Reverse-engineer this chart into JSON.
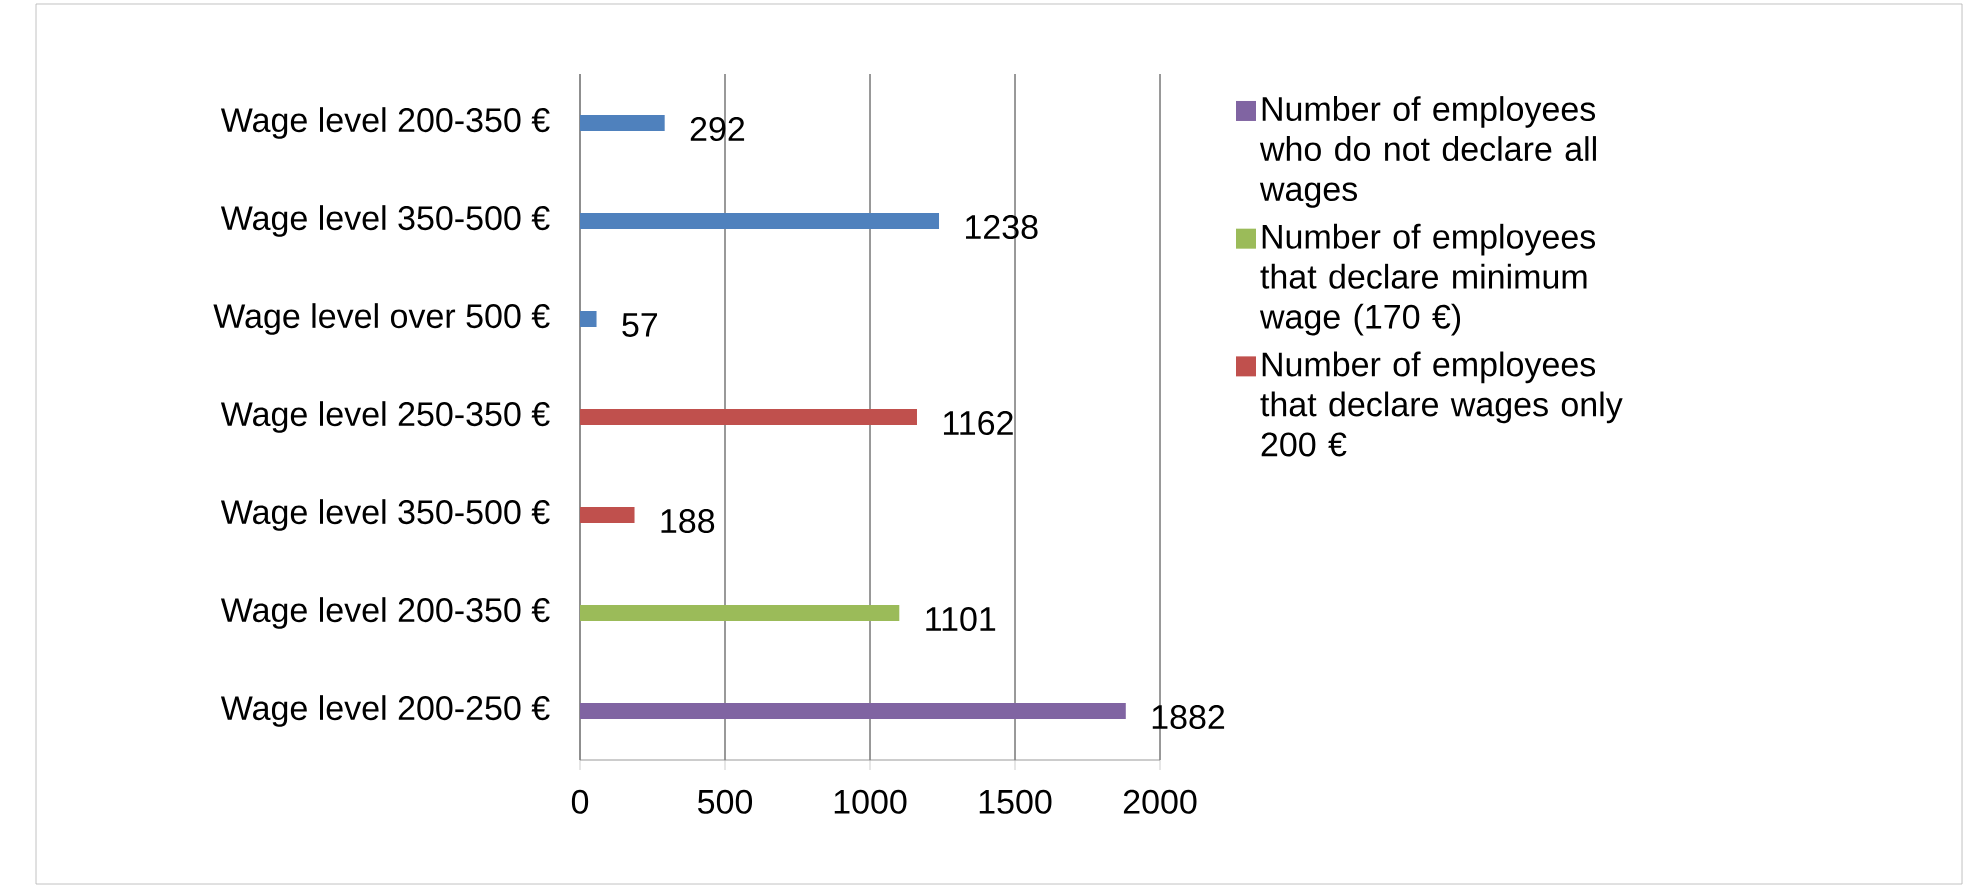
{
  "chart_data": {
    "type": "bar",
    "orientation": "horizontal",
    "categories": [
      "Wage level 200-350 €",
      "Wage level 350-500 €",
      "Wage level over 500 €",
      "Wage level 250-350 €",
      "Wage level 350-500 €",
      "Wage level 200-350 €",
      "Wage level 200-250 €"
    ],
    "series": [
      {
        "name": "Number of employees who do not declare all wages",
        "color": "#8064a2",
        "values": [
          null,
          null,
          null,
          null,
          null,
          null,
          1882
        ]
      },
      {
        "name": "Number of employees that declare minimum wage (170 €)",
        "color": "#9bbb59",
        "values": [
          null,
          null,
          null,
          null,
          null,
          1101,
          null
        ]
      },
      {
        "name": "Number of employees that declare wages only 200 €",
        "color": "#c0504d",
        "values": [
          null,
          null,
          null,
          1162,
          188,
          null,
          null
        ]
      },
      {
        "color": "#4f81bd",
        "values": [
          292,
          1238,
          57,
          null,
          null,
          null,
          null
        ]
      }
    ],
    "xlim": [
      0,
      2000
    ],
    "xticks": [
      0,
      500,
      1000,
      1500,
      2000
    ],
    "grid": "x",
    "legend": "right",
    "data_labels": true
  }
}
